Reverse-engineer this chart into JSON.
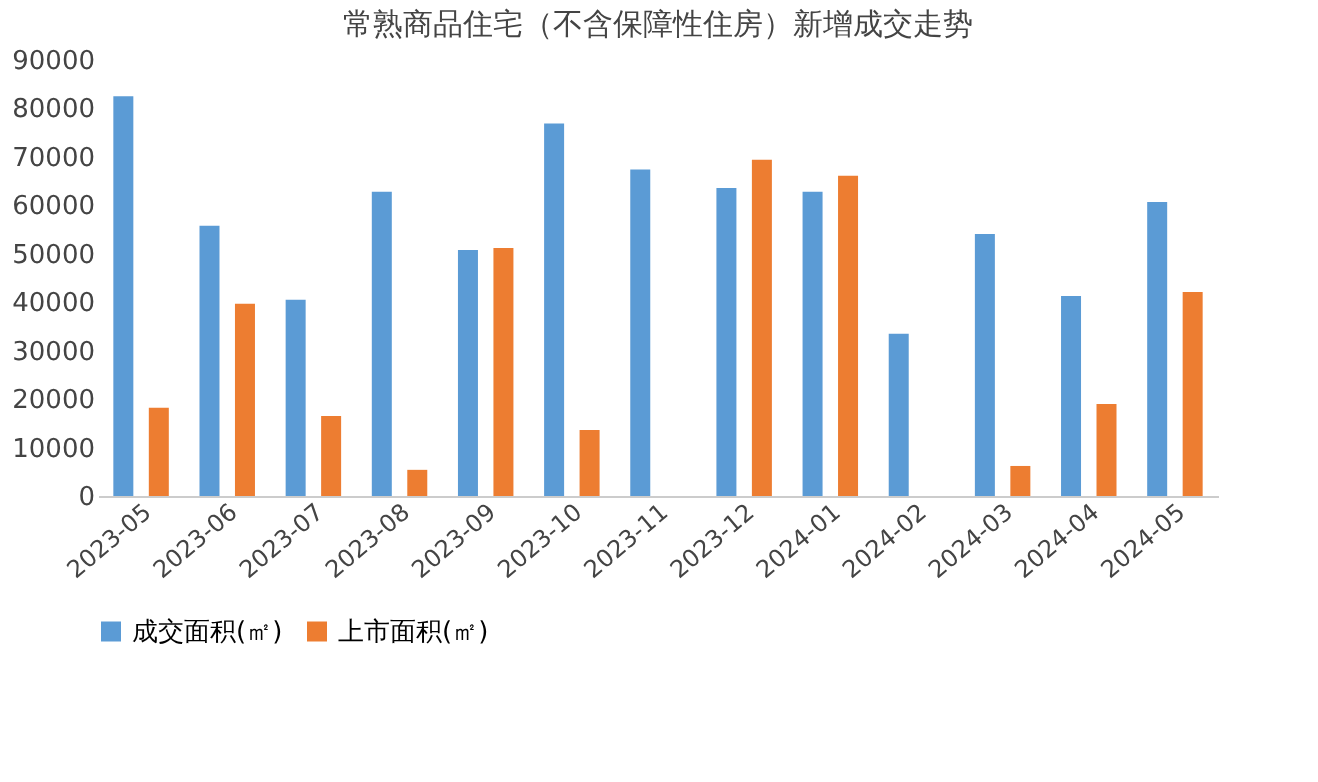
{
  "chart_data": {
    "type": "bar",
    "title": "常熟商品住宅（不含保障性住房）新增成交走势",
    "categories": [
      "2023-05",
      "2023-06",
      "2023-07",
      "2023-08",
      "2023-09",
      "2023-10",
      "2023-11",
      "2023-12",
      "2024-01",
      "2024-02",
      "2024-03",
      "2024-04",
      "2024-05"
    ],
    "series": [
      {
        "name": "成交面积(㎡)",
        "color": "#5b9bd5",
        "values": [
          82500,
          55800,
          40500,
          62800,
          50800,
          76900,
          67400,
          63600,
          62800,
          33500,
          54100,
          41300,
          60700
        ]
      },
      {
        "name": "上市面积(㎡)",
        "color": "#ed7d31",
        "values": [
          18200,
          39700,
          16500,
          5400,
          51200,
          13600,
          null,
          69400,
          66100,
          null,
          6200,
          19000,
          42100
        ]
      }
    ],
    "ylim": [
      0,
      90000
    ],
    "yticks": [
      0,
      10000,
      20000,
      30000,
      40000,
      50000,
      60000,
      70000,
      80000,
      90000
    ],
    "grid": false,
    "legend": "bottom"
  }
}
